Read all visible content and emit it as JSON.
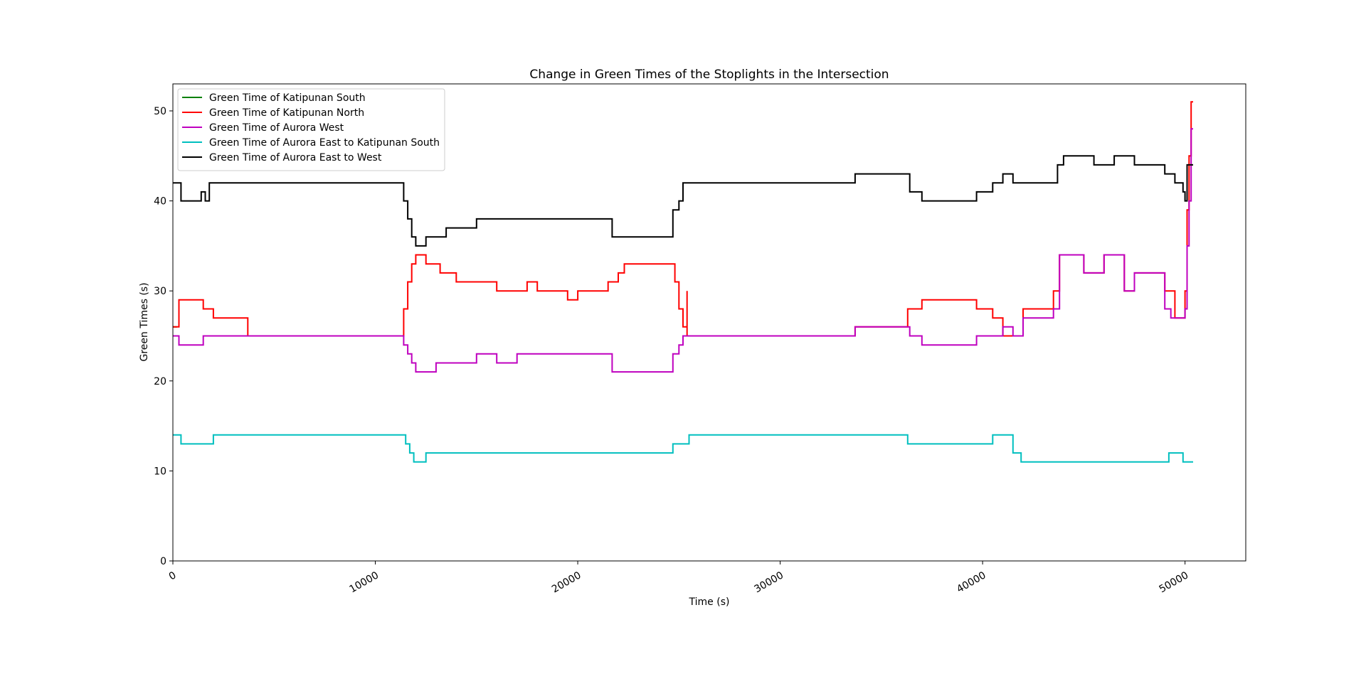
{
  "chart_data": {
    "type": "line",
    "title": "Change in Green Times of the Stoplights in the Intersection",
    "xlabel": "Time (s)",
    "ylabel": "Green Times (s)",
    "xlim": [
      0,
      53000
    ],
    "ylim": [
      0,
      53
    ],
    "x_ticks": [
      0,
      10000,
      20000,
      30000,
      40000,
      50000
    ],
    "x_tick_labels": [
      "0",
      "10000",
      "20000",
      "30000",
      "40000",
      "50000"
    ],
    "y_ticks": [
      0,
      10,
      20,
      30,
      40,
      50
    ],
    "y_tick_labels": [
      "0",
      "10",
      "20",
      "30",
      "40",
      "50"
    ],
    "x_tick_rotation_deg": 30,
    "grid": false,
    "legend_position": "top-left",
    "series": [
      {
        "name": "Green Time of Katipunan South",
        "color": "#008000",
        "x": [
          0,
          200
        ],
        "y": [
          26,
          26
        ]
      },
      {
        "name": "Green Time of Katipunan North",
        "color": "#ff0000",
        "x": [
          0,
          300,
          300,
          800,
          1500,
          1500,
          2000,
          2000,
          2500,
          3100,
          3700,
          3700,
          4000,
          11200,
          11400,
          11600,
          11800,
          12000,
          12500,
          12500,
          13200,
          13600,
          14000,
          15000,
          15500,
          16000,
          17500,
          18000,
          19000,
          19500,
          20000,
          21000,
          21500,
          22000,
          22300,
          24500,
          24800,
          25000,
          25200,
          25400,
          25400,
          26000,
          33500,
          33700,
          36100,
          36300,
          37000,
          39500,
          39700,
          40500,
          41000,
          41500,
          42000,
          43500,
          43800,
          44500,
          45000,
          45500,
          46000,
          46500,
          47000,
          47500,
          48500,
          49000,
          49500,
          49900,
          50000,
          50100,
          50200,
          50300,
          50400
        ],
        "y": [
          26,
          26,
          29,
          29,
          28,
          28,
          28,
          27,
          27,
          27,
          26,
          25,
          25,
          25,
          28,
          31,
          33,
          34,
          34,
          33,
          32,
          32,
          31,
          31,
          31,
          30,
          31,
          30,
          30,
          29,
          30,
          30,
          31,
          32,
          33,
          33,
          31,
          28,
          26,
          30,
          25,
          25,
          25,
          26,
          26,
          28,
          29,
          29,
          28,
          27,
          25,
          25,
          28,
          30,
          34,
          34,
          32,
          32,
          34,
          34,
          30,
          32,
          32,
          30,
          27,
          27,
          30,
          39,
          45,
          51,
          51
        ]
      },
      {
        "name": "Green Time of Aurora West",
        "color": "#bf00bf",
        "x": [
          0,
          300,
          300,
          1000,
          1500,
          1500,
          2500,
          4000,
          11200,
          11400,
          11600,
          11800,
          12000,
          12200,
          12500,
          13000,
          13500,
          14000,
          15000,
          16000,
          17000,
          18000,
          19000,
          21000,
          21500,
          21700,
          24500,
          24700,
          25000,
          25200,
          25400,
          26000,
          33500,
          33700,
          36100,
          36400,
          37000,
          39500,
          39700,
          40500,
          41000,
          41500,
          42000,
          43500,
          43800,
          44500,
          45000,
          45500,
          46000,
          46500,
          47000,
          47500,
          48500,
          49000,
          49300,
          49600,
          50000,
          50100,
          50200,
          50300,
          50400
        ],
        "y": [
          25,
          25,
          24,
          24,
          25,
          25,
          25,
          25,
          25,
          24,
          23,
          22,
          21,
          21,
          21,
          22,
          22,
          22,
          23,
          22,
          23,
          23,
          23,
          23,
          23,
          21,
          21,
          23,
          24,
          25,
          25,
          25,
          25,
          26,
          26,
          25,
          24,
          24,
          25,
          25,
          26,
          25,
          27,
          28,
          34,
          34,
          32,
          32,
          34,
          34,
          30,
          32,
          32,
          28,
          27,
          27,
          28,
          35,
          40,
          48,
          48
        ]
      },
      {
        "name": "Green Time of Aurora East to Katipunan South",
        "color": "#00bfbf",
        "x": [
          0,
          400,
          400,
          2000,
          2000,
          11300,
          11500,
          11700,
          11900,
          12300,
          12500,
          21500,
          21700,
          24500,
          24700,
          25300,
          25500,
          36100,
          36300,
          39500,
          40500,
          41200,
          41500,
          41700,
          41900,
          49000,
          49200,
          49700,
          49900,
          50400
        ],
        "y": [
          14,
          14,
          13,
          13,
          14,
          14,
          13,
          12,
          11,
          11,
          12,
          12,
          12,
          12,
          13,
          13,
          14,
          14,
          13,
          13,
          14,
          14,
          12,
          12,
          11,
          11,
          12,
          12,
          11,
          11
        ]
      },
      {
        "name": "Green Time of Aurora East to West",
        "color": "#000000",
        "x": [
          0,
          400,
          400,
          1200,
          1400,
          1600,
          1800,
          2200,
          2500,
          3000,
          3500,
          4000,
          11200,
          11400,
          11600,
          11800,
          12000,
          12500,
          13000,
          13500,
          14000,
          15000,
          16000,
          17000,
          18000,
          19000,
          20000,
          21000,
          21500,
          21700,
          24500,
          24700,
          25000,
          25200,
          25400,
          26000,
          33500,
          33700,
          36100,
          36400,
          37000,
          39500,
          39700,
          40500,
          41000,
          41500,
          42000,
          43500,
          43700,
          44000,
          45000,
          45500,
          46000,
          46500,
          47000,
          47500,
          48500,
          49000,
          49500,
          49900,
          50000,
          50100,
          50200,
          50400
        ],
        "y": [
          42,
          42,
          40,
          40,
          41,
          40,
          42,
          42,
          42,
          42,
          42,
          42,
          42,
          40,
          38,
          36,
          35,
          36,
          36,
          37,
          37,
          38,
          38,
          38,
          38,
          38,
          38,
          38,
          38,
          36,
          36,
          39,
          40,
          42,
          42,
          42,
          42,
          43,
          43,
          41,
          40,
          40,
          41,
          42,
          43,
          42,
          42,
          42,
          44,
          45,
          45,
          44,
          44,
          45,
          45,
          44,
          44,
          43,
          42,
          41,
          40,
          44,
          44,
          44
        ]
      }
    ]
  }
}
